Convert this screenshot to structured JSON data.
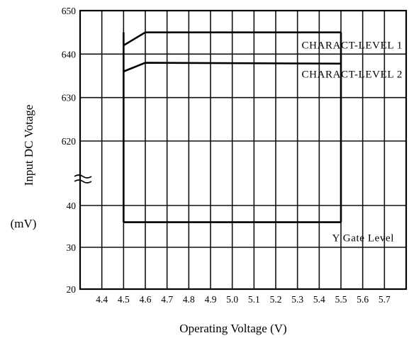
{
  "chart_data": {
    "type": "line",
    "title": "",
    "xlabel": "Operating Voltage (V)",
    "ylabel": "Input DC Votage",
    "yunit": "(mV)",
    "xlim": [
      4.3,
      5.8
    ],
    "x_tick_labels": [
      "4.4",
      "4.5",
      "4.6",
      "4.7",
      "4.8",
      "4.9",
      "5.0",
      "5.1",
      "5.2",
      "5.3",
      "5.4",
      "5.5",
      "5.6",
      "5.7"
    ],
    "y_axis_break": true,
    "y_segments": [
      {
        "range": [
          620,
          650
        ],
        "ticks": [
          620,
          630,
          640,
          650
        ],
        "tick_labels": [
          "620",
          "630",
          "640",
          "650"
        ]
      },
      {
        "range": [
          20,
          40
        ],
        "ticks": [
          20,
          30,
          40
        ],
        "tick_labels": [
          "20",
          "30",
          "40"
        ]
      }
    ],
    "grid": true,
    "legend": "none",
    "series": [
      {
        "name": "CHARACT-LEVEL 1",
        "x": [
          4.5,
          4.6,
          5.5
        ],
        "y": [
          642,
          645,
          645
        ]
      },
      {
        "name": "CHARACT-LEVEL 2",
        "x": [
          4.5,
          4.6,
          5.5
        ],
        "y": [
          636,
          638,
          637.8
        ]
      },
      {
        "name": "Y Gate Level",
        "x": [
          4.5,
          5.5
        ],
        "y": [
          36,
          36
        ]
      }
    ],
    "series_end_bars": {
      "x_from": 4.5,
      "x_to": 5.5,
      "top": 645,
      "bottom": 36
    }
  }
}
